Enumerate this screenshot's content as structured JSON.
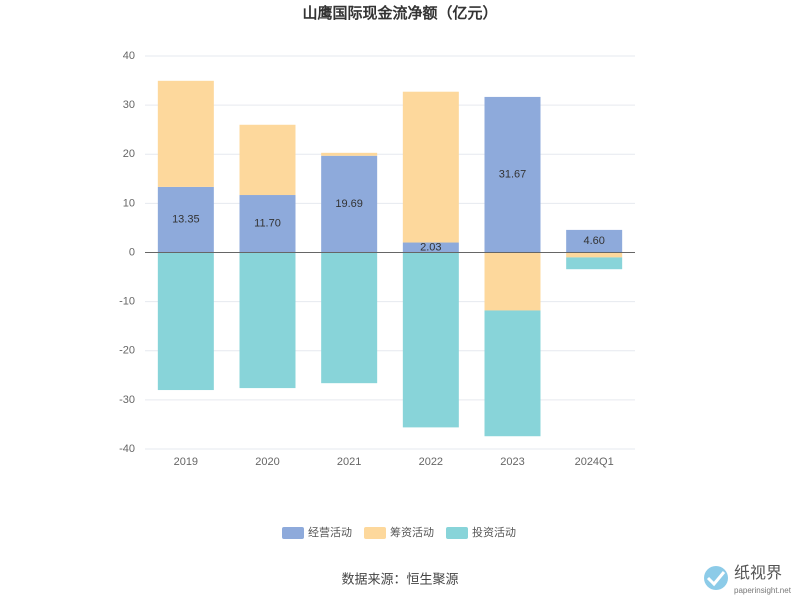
{
  "chart_data": {
    "type": "stacked_bar",
    "title": "山鹰国际现金流净额（亿元）",
    "categories": [
      "2019",
      "2020",
      "2021",
      "2022",
      "2023",
      "2024Q1"
    ],
    "series": [
      {
        "name": "经营活动",
        "color": "#8eaadb",
        "values": [
          13.35,
          11.7,
          19.69,
          2.03,
          31.67,
          4.6
        ],
        "value_labels": [
          "13.35",
          "11.70",
          "19.69",
          "2.03",
          "31.67",
          "4.60"
        ]
      },
      {
        "name": "筹资活动",
        "color": "#fdd89c",
        "values": [
          21.6,
          14.3,
          0.6,
          30.7,
          -11.8,
          -1.0
        ]
      },
      {
        "name": "投资活动",
        "color": "#88d4d9",
        "values": [
          -28.0,
          -27.6,
          -26.6,
          -35.6,
          -25.6,
          -2.4
        ]
      }
    ],
    "ylim": [
      -40,
      40
    ],
    "yticks": [
      -40,
      -30,
      -20,
      -10,
      0,
      10,
      20,
      30,
      40
    ],
    "grid": true,
    "legend": "bottom",
    "source": "数据来源：恒生聚源",
    "watermark": {
      "name": "纸视界",
      "url": "paperinsight.net"
    }
  }
}
